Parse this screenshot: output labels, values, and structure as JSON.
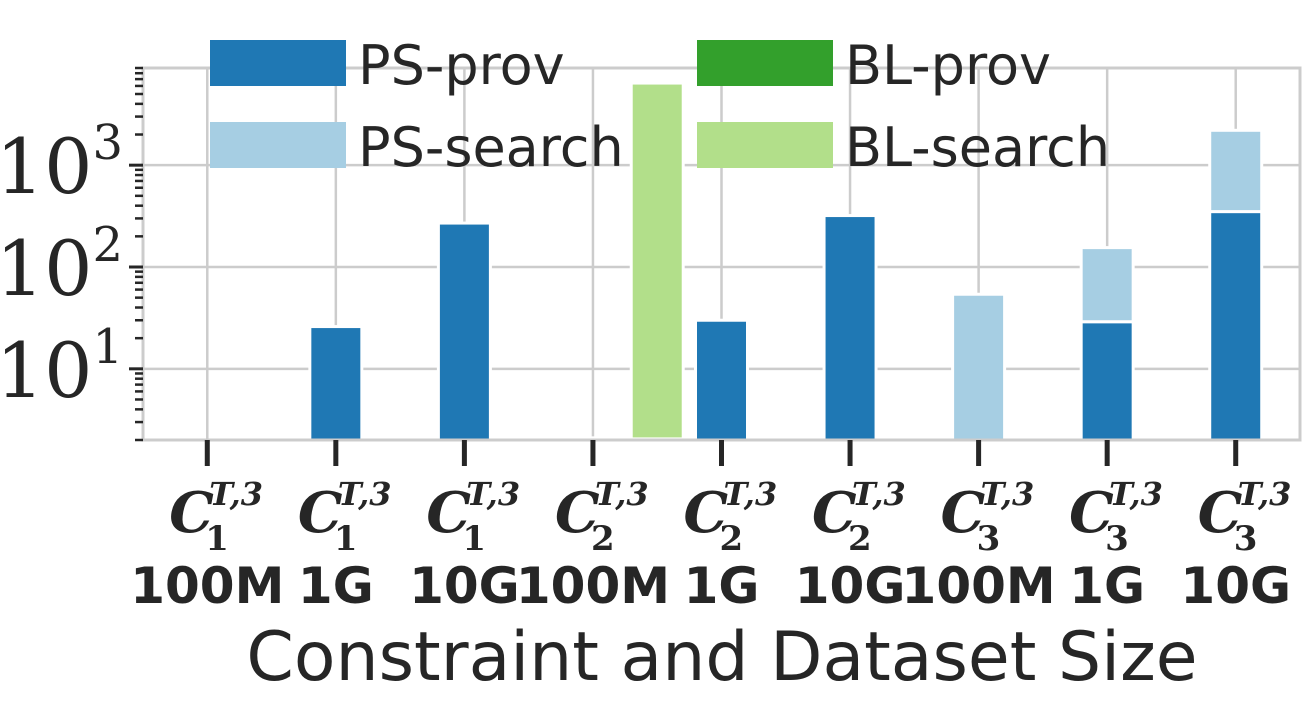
{
  "chart_data": {
    "type": "bar",
    "stacked": true,
    "xlabel": "Constraint and Dataset Size",
    "ylabel": "",
    "yscale": "log",
    "ylim": [
      2,
      9000
    ],
    "grid": true,
    "legend_position": "top",
    "yticks": [
      {
        "base": "10",
        "exp": "1",
        "value": 10
      },
      {
        "base": "10",
        "exp": "2",
        "value": 100
      },
      {
        "base": "10",
        "exp": "3",
        "value": 1000
      }
    ],
    "categories": [
      {
        "constraint": "C",
        "sub": "1",
        "sup": "T,3",
        "size": "100M"
      },
      {
        "constraint": "C",
        "sub": "1",
        "sup": "T,3",
        "size": "1G"
      },
      {
        "constraint": "C",
        "sub": "1",
        "sup": "T,3",
        "size": "10G"
      },
      {
        "constraint": "C",
        "sub": "2",
        "sup": "T,3",
        "size": "100M"
      },
      {
        "constraint": "C",
        "sub": "2",
        "sup": "T,3",
        "size": "1G"
      },
      {
        "constraint": "C",
        "sub": "2",
        "sup": "T,3",
        "size": "10G"
      },
      {
        "constraint": "C",
        "sub": "3",
        "sup": "T,3",
        "size": "100M"
      },
      {
        "constraint": "C",
        "sub": "3",
        "sup": "T,3",
        "size": "1G"
      },
      {
        "constraint": "C",
        "sub": "3",
        "sup": "T,3",
        "size": "10G"
      }
    ],
    "series": [
      {
        "name": "PS-prov",
        "color": "#1f78b4",
        "group": "PS",
        "stack": 0,
        "values": [
          2,
          26,
          270,
          2.1,
          30,
          320,
          2,
          29,
          350
        ]
      },
      {
        "name": "PS-search",
        "color": "#a6cee3",
        "group": "PS",
        "stack": 1,
        "values": [
          0,
          0,
          0,
          0,
          0,
          0,
          52,
          126,
          1850
        ]
      },
      {
        "name": "BL-prov",
        "color": "#33a02c",
        "group": "BL",
        "stack": 0,
        "values": [
          null,
          null,
          null,
          2.05,
          null,
          null,
          null,
          null,
          null
        ]
      },
      {
        "name": "BL-search",
        "color": "#b2df8a",
        "group": "BL",
        "stack": 1,
        "values": [
          null,
          null,
          null,
          6400,
          null,
          null,
          null,
          null,
          null
        ]
      }
    ]
  }
}
